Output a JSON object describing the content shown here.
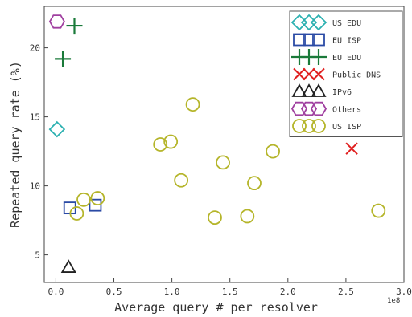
{
  "chart_data": {
    "type": "scatter",
    "title": "",
    "xlabel": "Average query # per resolver",
    "ylabel": "Repeated query rate (%)",
    "x_offset_label": "1e8",
    "xlim": [
      -0.1,
      3.0
    ],
    "ylim": [
      3,
      23
    ],
    "xticks": [
      0.0,
      0.5,
      1.0,
      1.5,
      2.0,
      2.5,
      3.0
    ],
    "xtick_labels": [
      "0.0",
      "0.5",
      "1.0",
      "1.5",
      "2.0",
      "2.5",
      "3.0"
    ],
    "yticks": [
      5,
      10,
      15,
      20
    ],
    "ytick_labels": [
      "5",
      "10",
      "15",
      "20"
    ],
    "grid": false,
    "legend_position": "top-right",
    "series": [
      {
        "name": "US EDU",
        "marker": "diamond",
        "color": "#2ab0b0",
        "points": [
          [
            0.01,
            14.1
          ]
        ]
      },
      {
        "name": "EU ISP",
        "marker": "square",
        "color": "#2a4aa5",
        "points": [
          [
            0.12,
            8.4
          ],
          [
            0.34,
            8.6
          ]
        ]
      },
      {
        "name": "EU EDU",
        "marker": "plus",
        "color": "#1a7a3a",
        "points": [
          [
            0.16,
            21.6
          ],
          [
            0.06,
            19.2
          ]
        ]
      },
      {
        "name": "Public DNS",
        "marker": "x",
        "color": "#e02020",
        "points": [
          [
            2.55,
            12.7
          ]
        ]
      },
      {
        "name": "IPv6",
        "marker": "triangle",
        "color": "#222222",
        "points": [
          [
            0.11,
            4.1
          ]
        ]
      },
      {
        "name": "Others",
        "marker": "hexagon",
        "color": "#a040a0",
        "points": [
          [
            0.01,
            21.9
          ]
        ]
      },
      {
        "name": "US ISP",
        "marker": "circle",
        "color": "#b5b52a",
        "points": [
          [
            0.18,
            8.0
          ],
          [
            0.24,
            9.0
          ],
          [
            0.36,
            9.1
          ],
          [
            0.9,
            13.0
          ],
          [
            0.99,
            13.2
          ],
          [
            1.08,
            10.4
          ],
          [
            1.18,
            15.9
          ],
          [
            1.37,
            7.7
          ],
          [
            1.44,
            11.7
          ],
          [
            1.65,
            7.8
          ],
          [
            1.71,
            10.2
          ],
          [
            1.87,
            12.5
          ],
          [
            2.78,
            8.2
          ]
        ]
      }
    ]
  }
}
